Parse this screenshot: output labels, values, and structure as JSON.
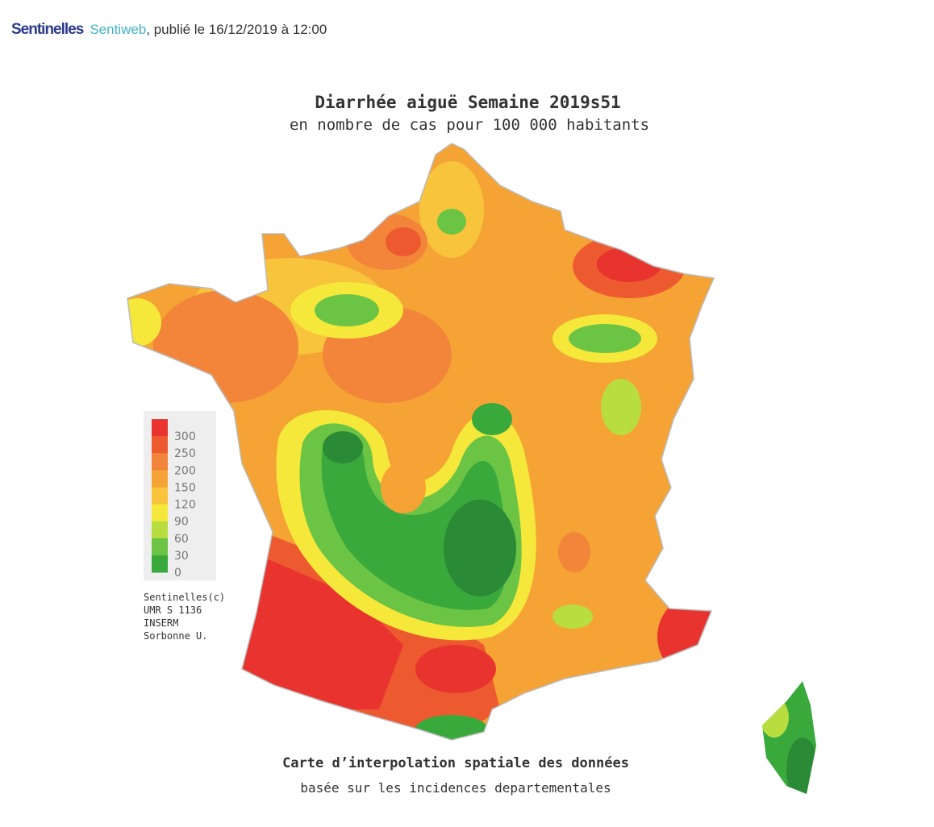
{
  "header": {
    "logo": "Sentinelles",
    "link": "Sentiweb",
    "text": ", publié le 16/12/2019 à 12:00"
  },
  "map": {
    "title": "Diarrhée aiguë Semaine 2019s51",
    "subtitle": "en nombre de cas pour 100 000 habitants",
    "legend": {
      "labels": [
        "300",
        "250",
        "200",
        "150",
        "120",
        "90",
        "60",
        "30",
        "0"
      ]
    },
    "credits": [
      "Sentinelles(c)",
      "UMR S 1136",
      "INSERM",
      "Sorbonne U."
    ],
    "caption": "Carte d’interpolation spatiale des données",
    "caption_sub": "basée sur les incidences departementales"
  }
}
